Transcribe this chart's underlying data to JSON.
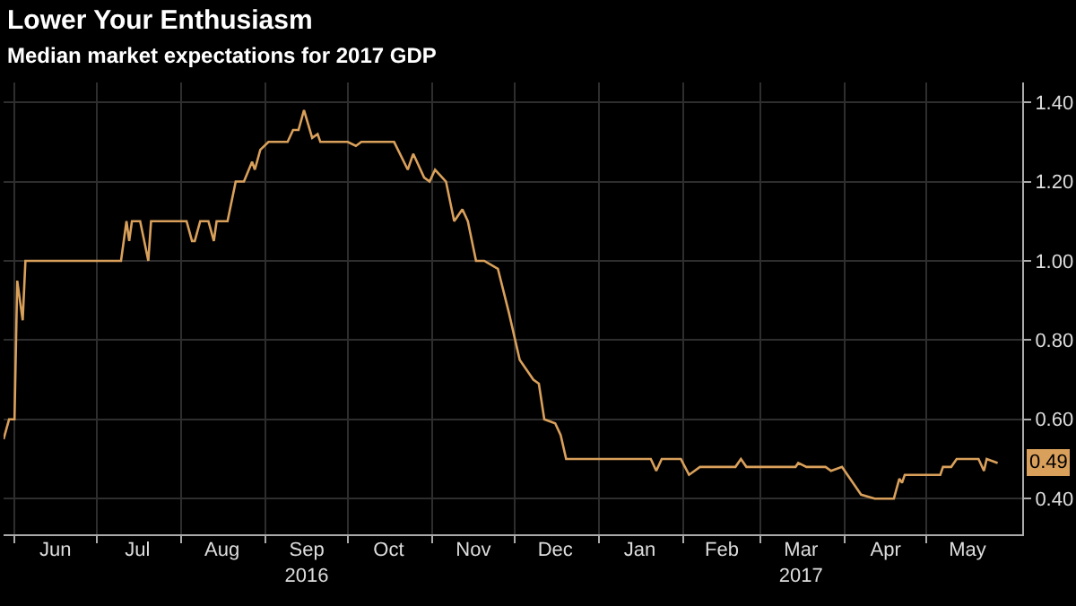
{
  "chart_data": {
    "type": "line",
    "title": "Lower Your Enthusiasm",
    "subtitle": "Median market expectations for 2017 GDP",
    "x": [
      "2016-05-28",
      "2016-05-30",
      "2016-06-01",
      "2016-06-02",
      "2016-06-04",
      "2016-06-05",
      "2016-07-10",
      "2016-07-12",
      "2016-07-13",
      "2016-07-14",
      "2016-07-17",
      "2016-07-20",
      "2016-07-21",
      "2016-08-03",
      "2016-08-05",
      "2016-08-06",
      "2016-08-08",
      "2016-08-11",
      "2016-08-13",
      "2016-08-14",
      "2016-08-18",
      "2016-08-21",
      "2016-08-24",
      "2016-08-27",
      "2016-08-28",
      "2016-08-30",
      "2016-09-02",
      "2016-09-09",
      "2016-09-11",
      "2016-09-13",
      "2016-09-15",
      "2016-09-18",
      "2016-09-20",
      "2016-09-21",
      "2016-10-01",
      "2016-10-04",
      "2016-10-06",
      "2016-10-18",
      "2016-10-23",
      "2016-10-25",
      "2016-10-29",
      "2016-10-31",
      "2016-11-02",
      "2016-11-06",
      "2016-11-09",
      "2016-11-12",
      "2016-11-14",
      "2016-11-17",
      "2016-11-20",
      "2016-11-25",
      "2016-11-29",
      "2016-12-03",
      "2016-12-08",
      "2016-12-10",
      "2016-12-12",
      "2016-12-16",
      "2016-12-18",
      "2016-12-20",
      "2017-01-20",
      "2017-01-22",
      "2017-01-24",
      "2017-01-31",
      "2017-02-03",
      "2017-02-07",
      "2017-02-20",
      "2017-02-22",
      "2017-02-24",
      "2017-03-02",
      "2017-03-04",
      "2017-03-06",
      "2017-03-14",
      "2017-03-15",
      "2017-03-18",
      "2017-03-25",
      "2017-03-27",
      "2017-03-31",
      "2017-04-04",
      "2017-04-07",
      "2017-04-12",
      "2017-04-19",
      "2017-04-21",
      "2017-04-22",
      "2017-04-23",
      "2017-04-27",
      "2017-05-06",
      "2017-05-07",
      "2017-05-10",
      "2017-05-12",
      "2017-05-20",
      "2017-05-22",
      "2017-05-23",
      "2017-05-27"
    ],
    "series": [
      {
        "color": "#d9a05b",
        "values": [
          0.55,
          0.6,
          0.6,
          0.95,
          0.85,
          1.0,
          1.0,
          1.1,
          1.05,
          1.1,
          1.1,
          1.0,
          1.1,
          1.1,
          1.05,
          1.05,
          1.1,
          1.1,
          1.05,
          1.1,
          1.1,
          1.2,
          1.2,
          1.25,
          1.23,
          1.28,
          1.3,
          1.3,
          1.33,
          1.33,
          1.38,
          1.31,
          1.32,
          1.3,
          1.3,
          1.29,
          1.3,
          1.3,
          1.23,
          1.27,
          1.21,
          1.2,
          1.23,
          1.2,
          1.1,
          1.13,
          1.1,
          1.0,
          1.0,
          0.98,
          0.87,
          0.75,
          0.7,
          0.69,
          0.6,
          0.59,
          0.56,
          0.5,
          0.5,
          0.47,
          0.5,
          0.5,
          0.46,
          0.48,
          0.48,
          0.5,
          0.48,
          0.48,
          0.48,
          0.48,
          0.48,
          0.49,
          0.48,
          0.48,
          0.47,
          0.48,
          0.44,
          0.41,
          0.4,
          0.4,
          0.45,
          0.44,
          0.46,
          0.46,
          0.46,
          0.48,
          0.48,
          0.5,
          0.5,
          0.47,
          0.5,
          0.49
        ]
      }
    ],
    "xlim": [
      "2016-05-28",
      "2017-06-05"
    ],
    "xticks": [
      {
        "value": "2016-06-01",
        "label": null
      },
      {
        "value": "2016-06-16",
        "label": "Jun"
      },
      {
        "value": "2016-07-01",
        "label": null
      },
      {
        "value": "2016-07-16",
        "label": "Jul"
      },
      {
        "value": "2016-08-01",
        "label": null
      },
      {
        "value": "2016-08-16",
        "label": "Aug"
      },
      {
        "value": "2016-09-01",
        "label": null
      },
      {
        "value": "2016-09-16",
        "label": "Sep\n2016"
      },
      {
        "value": "2016-10-01",
        "label": null
      },
      {
        "value": "2016-10-16",
        "label": "Oct"
      },
      {
        "value": "2016-11-01",
        "label": null
      },
      {
        "value": "2016-11-16",
        "label": "Nov"
      },
      {
        "value": "2016-12-01",
        "label": null
      },
      {
        "value": "2016-12-16",
        "label": "Dec"
      },
      {
        "value": "2017-01-01",
        "label": null
      },
      {
        "value": "2017-01-16",
        "label": "Jan"
      },
      {
        "value": "2017-02-01",
        "label": null
      },
      {
        "value": "2017-02-15",
        "label": "Feb"
      },
      {
        "value": "2017-03-01",
        "label": null
      },
      {
        "value": "2017-03-16",
        "label": "Mar\n2017"
      },
      {
        "value": "2017-04-01",
        "label": null
      },
      {
        "value": "2017-04-16",
        "label": "Apr"
      },
      {
        "value": "2017-05-01",
        "label": null
      },
      {
        "value": "2017-05-16",
        "label": "May"
      }
    ],
    "ylim": [
      0.31,
      1.45
    ],
    "yticks": [
      {
        "value": 0.4,
        "label": "0.40"
      },
      {
        "value": 0.6,
        "label": "0.60"
      },
      {
        "value": 0.8,
        "label": "0.80"
      },
      {
        "value": 1.0,
        "label": "1.00"
      },
      {
        "value": 1.2,
        "label": "1.20"
      },
      {
        "value": 1.4,
        "label": "1.40"
      }
    ],
    "annotations": [
      {
        "text": "0.49",
        "y": 0.49
      }
    ],
    "grid": true,
    "line_style": "solid",
    "marker": "none",
    "legend": false
  }
}
